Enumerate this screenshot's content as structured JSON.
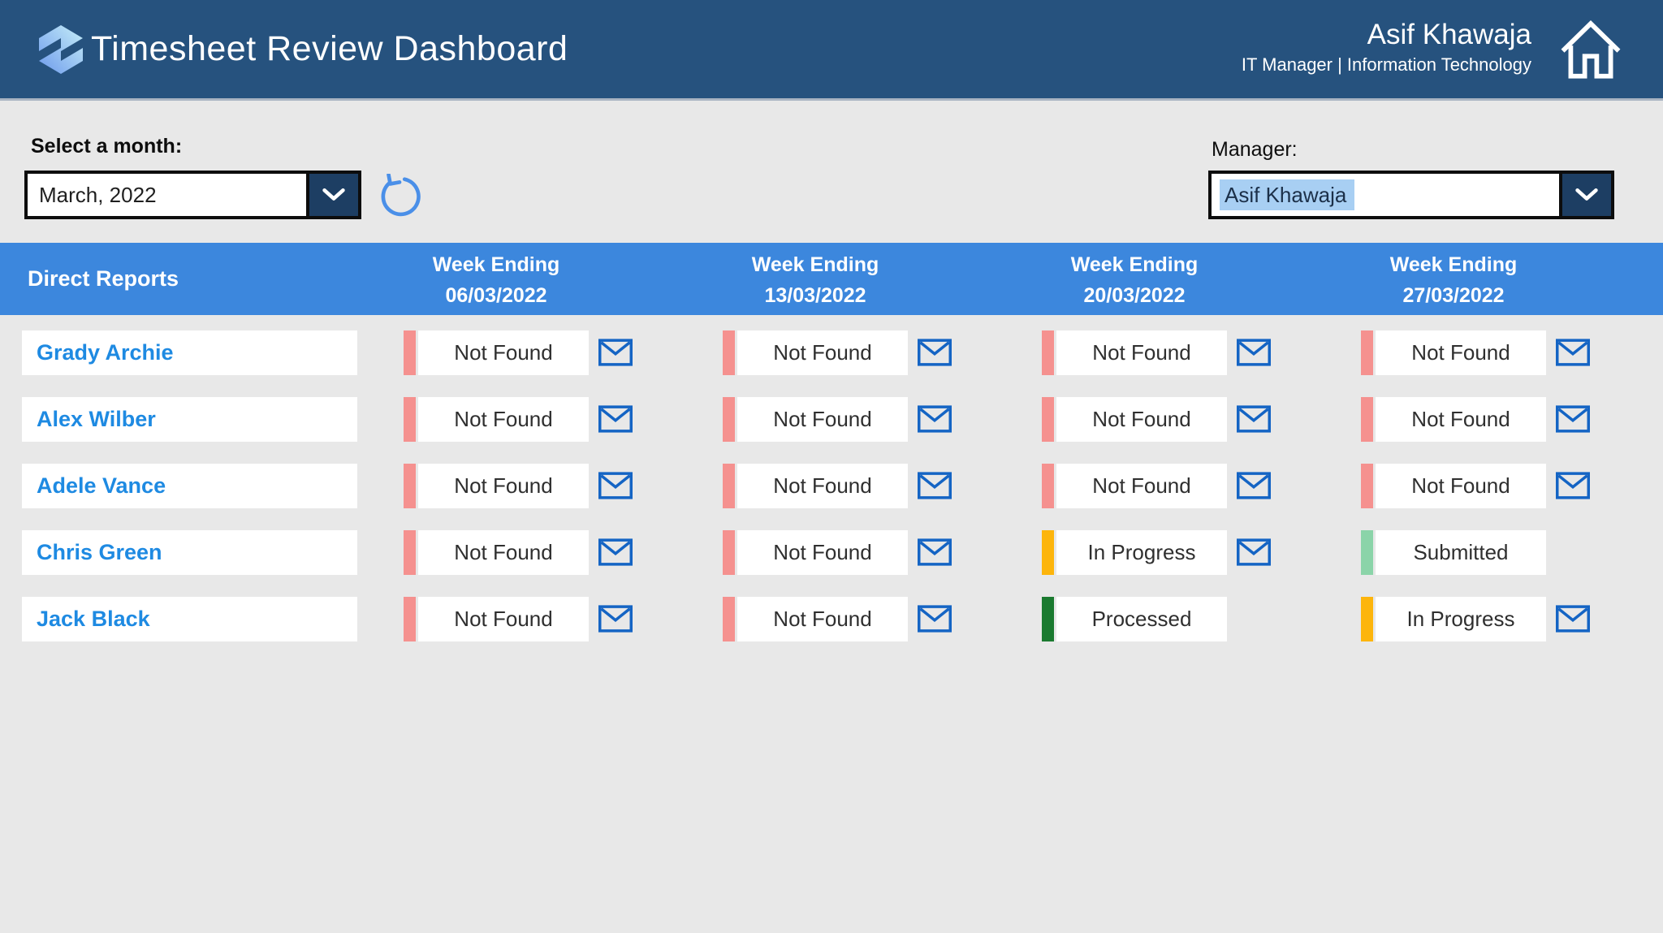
{
  "header": {
    "title": "Timesheet Review Dashboard",
    "user_name": "Asif Khawaja",
    "user_role": "IT Manager | Information Technology"
  },
  "filters": {
    "month_label": "Select a month:",
    "month_value": "March, 2022",
    "manager_label": "Manager:",
    "manager_value": "Asif Khawaja"
  },
  "table": {
    "first_column_header": "Direct Reports",
    "week_columns": [
      {
        "line1": "Week Ending",
        "line2": "06/03/2022"
      },
      {
        "line1": "Week Ending",
        "line2": "13/03/2022"
      },
      {
        "line1": "Week Ending",
        "line2": "20/03/2022"
      },
      {
        "line1": "Week Ending",
        "line2": "27/03/2022"
      }
    ],
    "rows": [
      {
        "name": "Grady Archie",
        "cells": [
          {
            "status": "Not Found",
            "envelope": true
          },
          {
            "status": "Not Found",
            "envelope": true
          },
          {
            "status": "Not Found",
            "envelope": true
          },
          {
            "status": "Not Found",
            "envelope": true
          }
        ]
      },
      {
        "name": "Alex Wilber",
        "cells": [
          {
            "status": "Not Found",
            "envelope": true
          },
          {
            "status": "Not Found",
            "envelope": true
          },
          {
            "status": "Not Found",
            "envelope": true
          },
          {
            "status": "Not Found",
            "envelope": true
          }
        ]
      },
      {
        "name": "Adele Vance",
        "cells": [
          {
            "status": "Not Found",
            "envelope": true
          },
          {
            "status": "Not Found",
            "envelope": true
          },
          {
            "status": "Not Found",
            "envelope": true
          },
          {
            "status": "Not Found",
            "envelope": true
          }
        ]
      },
      {
        "name": "Chris Green",
        "cells": [
          {
            "status": "Not Found",
            "envelope": true
          },
          {
            "status": "Not Found",
            "envelope": true
          },
          {
            "status": "In Progress",
            "envelope": true
          },
          {
            "status": "Submitted",
            "envelope": false
          }
        ]
      },
      {
        "name": "Jack Black",
        "cells": [
          {
            "status": "Not Found",
            "envelope": true
          },
          {
            "status": "Not Found",
            "envelope": true
          },
          {
            "status": "Processed",
            "envelope": false
          },
          {
            "status": "In Progress",
            "envelope": true
          }
        ]
      }
    ]
  },
  "status_colors": {
    "Not Found": "#f5918f",
    "In Progress": "#fdb50c",
    "Submitted": "#8bd4a9",
    "Processed": "#1b7a30"
  },
  "colors": {
    "banner_bg": "#26527e",
    "matrix_header_bg": "#3c87dd",
    "employee_link": "#1e8ae2",
    "envelope_blue": "#1464c4",
    "refresh_blue": "#4a8fe8",
    "dropdown_button_bg": "#1d3e63",
    "selection_highlight": "#a8cff3",
    "page_bg": "#e8e8e8"
  },
  "icons": {
    "logo": "hexagon-cube-logo",
    "home": "house-outline",
    "refresh": "circular-arrow",
    "dropdown": "chevron-down",
    "mail": "envelope"
  }
}
